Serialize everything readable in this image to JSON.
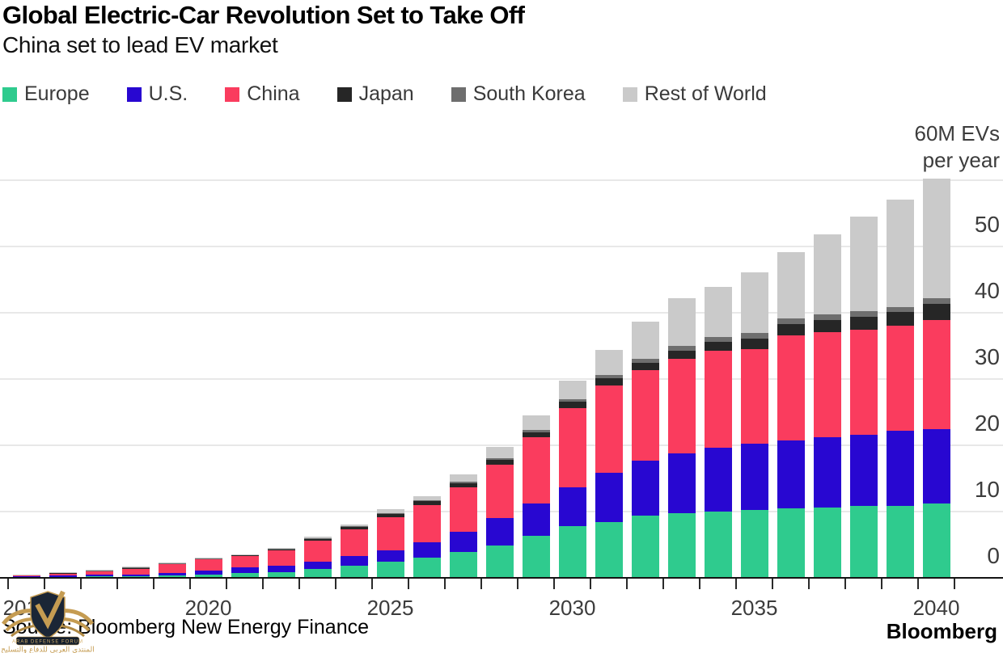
{
  "header": {
    "title": "Global Electric-Car Revolution Set to Take Off",
    "subtitle": "China set to lead EV market"
  },
  "legend": {
    "items": [
      {
        "label": "Europe",
        "color": "#2fcb8e"
      },
      {
        "label": "U.S.",
        "color": "#2807d1"
      },
      {
        "label": "China",
        "color": "#fa3c5e"
      },
      {
        "label": "Japan",
        "color": "#262626"
      },
      {
        "label": "South Korea",
        "color": "#6e6e6e"
      },
      {
        "label": "Rest of World",
        "color": "#cacaca"
      }
    ]
  },
  "y_axis": {
    "note_line1": "60M EVs",
    "note_line2": "per year",
    "tick_labels": [
      0,
      10,
      20,
      30,
      40,
      50
    ]
  },
  "x_axis": {
    "labeled_years": [
      2015,
      2020,
      2025,
      2030,
      2035,
      2040
    ]
  },
  "chart_data": {
    "type": "bar",
    "stacked": true,
    "title": "Global Electric-Car Revolution Set to Take Off",
    "subtitle": "China set to lead EV market",
    "ylabel": "60M EVs per year",
    "ylim": [
      0,
      60
    ],
    "gridlines": [
      0,
      10,
      20,
      30,
      40,
      50,
      60
    ],
    "grid": true,
    "legend_position": "top",
    "unit": "million EVs per year",
    "x": [
      2015,
      2016,
      2017,
      2018,
      2019,
      2020,
      2021,
      2022,
      2023,
      2024,
      2025,
      2026,
      2027,
      2028,
      2029,
      2030,
      2031,
      2032,
      2033,
      2034,
      2035,
      2036,
      2037,
      2038,
      2039,
      2040
    ],
    "series": [
      {
        "name": "Europe",
        "color": "#2fcb8e",
        "values": [
          0.1,
          0.15,
          0.2,
          0.25,
          0.35,
          0.5,
          0.7,
          0.8,
          1.3,
          1.8,
          2.4,
          3.1,
          3.9,
          4.9,
          6.3,
          7.8,
          8.4,
          9.4,
          9.8,
          10.0,
          10.2,
          10.5,
          10.6,
          10.8,
          10.9,
          11.2
        ]
      },
      {
        "name": "U.S.",
        "color": "#2807d1",
        "values": [
          0.15,
          0.18,
          0.25,
          0.3,
          0.4,
          0.55,
          0.85,
          1.0,
          1.2,
          1.5,
          1.8,
          2.3,
          3.1,
          4.1,
          4.9,
          5.9,
          7.4,
          8.3,
          9.0,
          9.6,
          10.0,
          10.2,
          10.6,
          10.8,
          11.3,
          11.2
        ]
      },
      {
        "name": "China",
        "color": "#fa3c5e",
        "values": [
          0.2,
          0.38,
          0.6,
          0.85,
          1.3,
          1.7,
          1.8,
          2.4,
          3.1,
          4.0,
          4.9,
          5.6,
          6.7,
          8.1,
          10.0,
          11.9,
          13.2,
          13.6,
          14.2,
          14.7,
          14.3,
          15.9,
          15.9,
          15.9,
          15.9,
          16.5
        ]
      },
      {
        "name": "Japan",
        "color": "#262626",
        "values": [
          0.05,
          0.06,
          0.07,
          0.09,
          0.1,
          0.12,
          0.12,
          0.16,
          0.35,
          0.42,
          0.5,
          0.55,
          0.55,
          0.7,
          0.8,
          0.95,
          1.1,
          1.1,
          1.25,
          1.3,
          1.55,
          1.7,
          1.85,
          1.9,
          2.05,
          2.4
        ]
      },
      {
        "name": "South Korea",
        "color": "#6e6e6e",
        "values": [
          0.02,
          0.03,
          0.04,
          0.05,
          0.05,
          0.06,
          0.05,
          0.06,
          0.08,
          0.1,
          0.15,
          0.2,
          0.25,
          0.3,
          0.35,
          0.4,
          0.5,
          0.6,
          0.7,
          0.75,
          0.9,
          0.8,
          0.75,
          0.8,
          0.75,
          0.9
        ]
      },
      {
        "name": "Rest of World",
        "color": "#cacaca",
        "values": [
          0.03,
          0.05,
          0.08,
          0.11,
          0.15,
          0.12,
          0.08,
          0.08,
          0.17,
          0.23,
          0.6,
          0.55,
          1.1,
          1.6,
          2.15,
          2.85,
          3.75,
          5.7,
          7.3,
          7.55,
          9.15,
          10.1,
          12.1,
          14.3,
          16.2,
          18.0
        ]
      }
    ]
  },
  "footer": {
    "source": "Source: Bloomberg New Energy Finance",
    "brand": "Bloomberg"
  },
  "watermark": {
    "banner_text": "ARAB DEFENSE FORUM",
    "arabic_text": "المنتدى العربي للدفاع والتسليح"
  }
}
